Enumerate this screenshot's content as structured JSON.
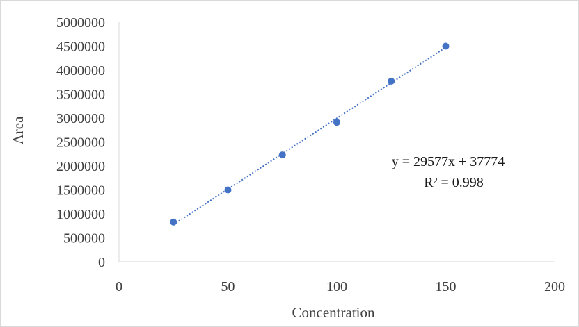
{
  "chart_data": {
    "type": "scatter",
    "title": "",
    "xlabel": "Concentration",
    "ylabel": "Area",
    "xlim": [
      0,
      200
    ],
    "ylim": [
      0,
      5000000
    ],
    "x_ticks": [
      0,
      50,
      100,
      150,
      200
    ],
    "y_ticks": [
      0,
      500000,
      1000000,
      1500000,
      2000000,
      2500000,
      3000000,
      3500000,
      4000000,
      4500000,
      5000000
    ],
    "series": [
      {
        "x": [
          25,
          50,
          75,
          100,
          125,
          150
        ],
        "y": [
          830000,
          1500000,
          2230000,
          2910000,
          3770000,
          4500000
        ],
        "color": "#4472c4"
      }
    ],
    "trendline": {
      "type": "linear",
      "slope": 29577,
      "intercept": 37774,
      "style": "dotted",
      "color": "#4472c4",
      "x_range": [
        25,
        150
      ]
    },
    "annotations": {
      "equation": "y = 29577x + 37774",
      "r_squared": "R² = 0.998"
    },
    "grid": false,
    "legend": "none"
  }
}
